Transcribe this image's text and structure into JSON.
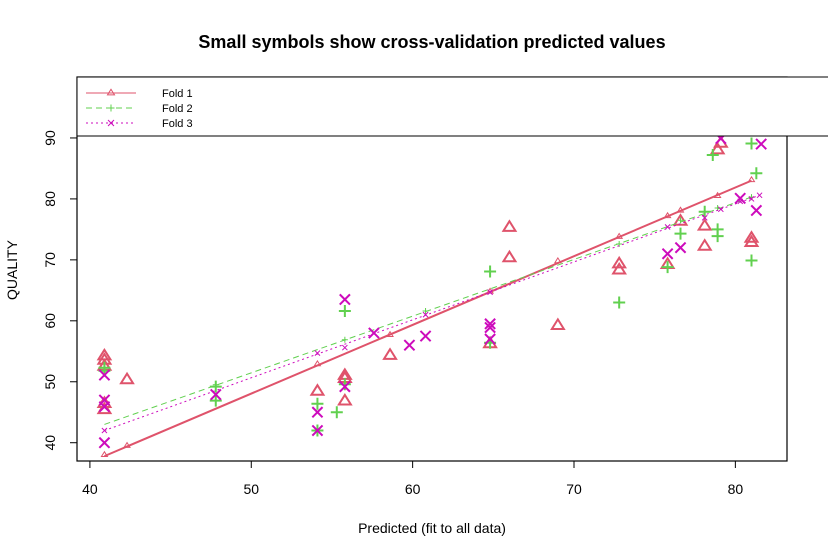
{
  "chart_data": {
    "type": "scatter",
    "title": "Small symbols show cross-validation predicted values",
    "xlabel": "Predicted (fit to all data)",
    "ylabel": "QUALITY",
    "xlim": [
      39.2,
      83.2
    ],
    "ylim": [
      37,
      100
    ],
    "xticks": [
      40,
      50,
      60,
      70,
      80
    ],
    "yticks": [
      40,
      50,
      60,
      70,
      80,
      90
    ],
    "grid": false,
    "legend_position": "top-left",
    "series": [
      {
        "name": "Fold 1",
        "color": "#DF536B",
        "marker": "triangle",
        "linestyle": "solid",
        "fit_line": [
          [
            40.9,
            37.8
          ],
          [
            81.0,
            83.0
          ]
        ],
        "cv_points": [
          [
            40.9,
            38
          ],
          [
            42.3,
            39.5
          ],
          [
            54.1,
            52.9
          ],
          [
            58.6,
            57.7
          ],
          [
            64.8,
            64.8
          ],
          [
            69.0,
            69.8
          ],
          [
            72.8,
            73.8
          ],
          [
            75.8,
            77.2
          ],
          [
            76.6,
            78.1
          ],
          [
            78.9,
            80.5
          ],
          [
            81.0,
            83.1
          ]
        ],
        "points": [
          [
            40.9,
            54.2
          ],
          [
            40.9,
            53.5
          ],
          [
            40.9,
            52.5
          ],
          [
            40.9,
            45.4
          ],
          [
            40.9,
            46.4
          ],
          [
            42.3,
            50.3
          ],
          [
            54.1,
            48.4
          ],
          [
            55.8,
            51
          ],
          [
            55.8,
            50.5
          ],
          [
            55.8,
            46.8
          ],
          [
            58.6,
            54.3
          ],
          [
            64.8,
            56.2
          ],
          [
            66.0,
            75.3
          ],
          [
            66.0,
            70.3
          ],
          [
            69.0,
            59.2
          ],
          [
            72.8,
            69.3
          ],
          [
            72.8,
            68.3
          ],
          [
            75.8,
            69.2
          ],
          [
            76.6,
            76.3
          ],
          [
            78.1,
            75.5
          ],
          [
            78.1,
            72.2
          ],
          [
            78.9,
            88.0
          ],
          [
            79.1,
            89.1
          ],
          [
            81.0,
            73.5
          ],
          [
            81.0,
            72.8
          ]
        ]
      },
      {
        "name": "Fold 2",
        "color": "#61D04F",
        "marker": "plus",
        "linestyle": "dashed",
        "fit_line": [
          [
            40.9,
            43.0
          ],
          [
            81.0,
            80.3
          ]
        ],
        "cv_points": [
          [
            47.8,
            49.5
          ],
          [
            55.8,
            56.9
          ],
          [
            60.8,
            61.6
          ],
          [
            72.8,
            72.6
          ],
          [
            76.6,
            76.5
          ],
          [
            78.9,
            78.5
          ],
          [
            81.0,
            80.3
          ]
        ],
        "points": [
          [
            40.9,
            52.3
          ],
          [
            40.9,
            51.8
          ],
          [
            47.8,
            49.2
          ],
          [
            47.8,
            46.9
          ],
          [
            54.1,
            46.4
          ],
          [
            54.1,
            42.0
          ],
          [
            55.3,
            45.0
          ],
          [
            55.8,
            61.6
          ],
          [
            55.8,
            49.6
          ],
          [
            64.8,
            68.1
          ],
          [
            64.8,
            56.4
          ],
          [
            72.8,
            63.0
          ],
          [
            75.8,
            68.8
          ],
          [
            76.6,
            74.3
          ],
          [
            78.1,
            77.9
          ],
          [
            78.6,
            87.2
          ],
          [
            78.9,
            75.0
          ],
          [
            78.9,
            73.9
          ],
          [
            81.0,
            89.1
          ],
          [
            81.0,
            69.9
          ],
          [
            81.3,
            84.2
          ]
        ]
      },
      {
        "name": "Fold 3",
        "color": "#CD0BBC",
        "marker": "x",
        "linestyle": "dotted",
        "fit_line": [
          [
            40.9,
            42.0
          ],
          [
            81.5,
            80.6
          ]
        ],
        "cv_points": [
          [
            40.9,
            42.0
          ],
          [
            54.1,
            54.7
          ],
          [
            55.8,
            55.6
          ],
          [
            60.8,
            61.0
          ],
          [
            64.8,
            64.7
          ],
          [
            75.8,
            75.4
          ],
          [
            78.1,
            76.9
          ],
          [
            79.1,
            78.3
          ],
          [
            80.3,
            79.6
          ],
          [
            81.0,
            80.0
          ],
          [
            81.5,
            80.6
          ]
        ],
        "points": [
          [
            40.9,
            47.0
          ],
          [
            40.9,
            45.9
          ],
          [
            40.9,
            51.1
          ],
          [
            40.9,
            40.0
          ],
          [
            47.8,
            47.9
          ],
          [
            54.1,
            45.0
          ],
          [
            54.1,
            42.0
          ],
          [
            55.8,
            63.5
          ],
          [
            55.8,
            49.2
          ],
          [
            57.6,
            58.0
          ],
          [
            59.8,
            56.0
          ],
          [
            60.8,
            57.5
          ],
          [
            64.8,
            59.5
          ],
          [
            64.8,
            58.9
          ],
          [
            64.8,
            57.0
          ],
          [
            75.8,
            71.0
          ],
          [
            76.6,
            72.0
          ],
          [
            79.1,
            89.9
          ],
          [
            80.3,
            80.1
          ],
          [
            81.3,
            78.1
          ],
          [
            81.6,
            89.0
          ]
        ]
      }
    ]
  }
}
